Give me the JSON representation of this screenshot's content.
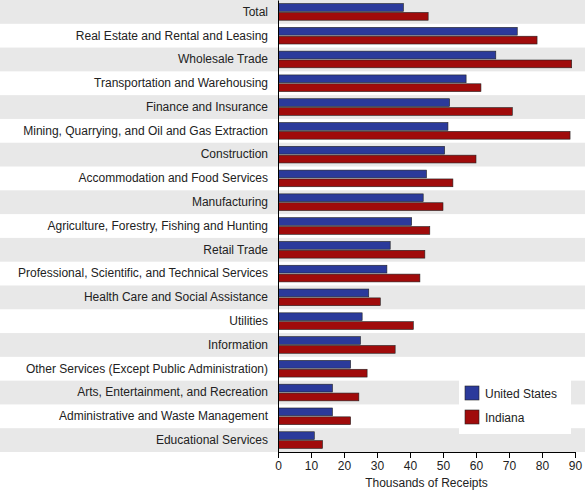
{
  "chart_data": {
    "type": "bar",
    "orientation": "horizontal",
    "categories": [
      "Total",
      "Real Estate and Rental and Leasing",
      "Wholesale Trade",
      "Transportation and Warehousing",
      "Finance and Insurance",
      "Mining, Quarrying, and Oil and Gas Extraction",
      "Construction",
      "Accommodation and Food Services",
      "Manufacturing",
      "Agriculture, Forestry, Fishing and Hunting",
      "Retail Trade",
      "Professional, Scientific, and Technical Services",
      "Health Care and Social Assistance",
      "Utilities",
      "Information",
      "Other Services (Except Public Administration)",
      "Arts, Entertainment, and Recreation",
      "Administrative and Waste Management",
      "Educational Services"
    ],
    "series": [
      {
        "name": "United States",
        "color": "#2b3a9b",
        "values": [
          38,
          72.5,
          66,
          57,
          52,
          51.5,
          50.5,
          45,
          44,
          40.5,
          34,
          33,
          27.5,
          25.5,
          25,
          22,
          16.5,
          16.5,
          11
        ]
      },
      {
        "name": "Indiana",
        "color": "#a00b0b",
        "values": [
          45.5,
          78.5,
          89,
          61.5,
          71,
          88.5,
          60,
          53,
          50,
          46,
          44.5,
          43,
          31,
          41,
          35.5,
          27,
          24.5,
          22,
          13.5
        ]
      }
    ],
    "x_label": "Thousands of Receipts",
    "xlim": [
      0,
      90
    ],
    "xticks": [
      0,
      10,
      20,
      30,
      40,
      50,
      60,
      70,
      80,
      90
    ],
    "grid": false,
    "legend": "lower right"
  }
}
